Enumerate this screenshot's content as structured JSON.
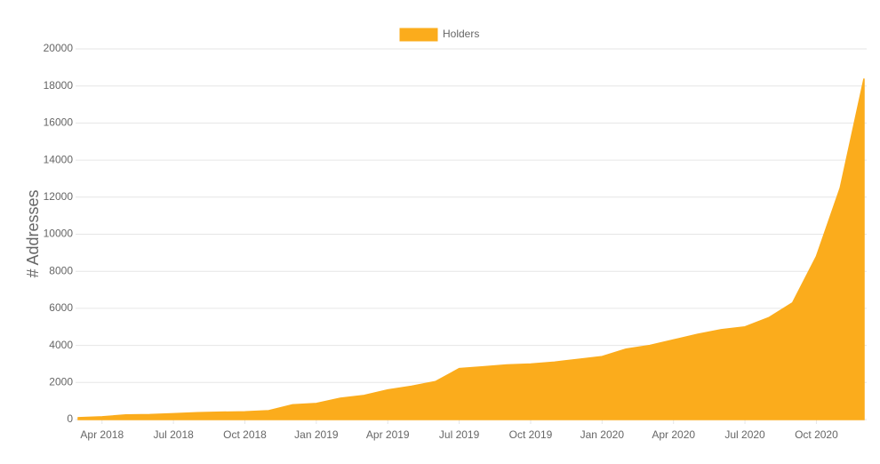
{
  "chart_data": {
    "type": "area",
    "y_label": "# Addresses",
    "x": [
      "2018-03",
      "2018-04",
      "2018-05",
      "2018-06",
      "2018-07",
      "2018-08",
      "2018-09",
      "2018-10",
      "2018-11",
      "2018-12",
      "2019-01",
      "2019-02",
      "2019-03",
      "2019-04",
      "2019-05",
      "2019-06",
      "2019-07",
      "2019-08",
      "2019-09",
      "2019-10",
      "2019-11",
      "2019-12",
      "2020-01",
      "2020-02",
      "2020-03",
      "2020-04",
      "2020-05",
      "2020-06",
      "2020-07",
      "2020-08",
      "2020-09",
      "2020-10",
      "2020-11",
      "2020-12"
    ],
    "series": [
      {
        "name": "Holders",
        "color": "#fbac1c",
        "values": [
          100,
          150,
          250,
          270,
          320,
          370,
          400,
          420,
          480,
          800,
          870,
          1150,
          1300,
          1600,
          1800,
          2050,
          2750,
          2850,
          2950,
          3000,
          3100,
          3250,
          3400,
          3800,
          4000,
          4300,
          4600,
          4850,
          5000,
          5500,
          6300,
          8800,
          12500,
          18400
        ]
      }
    ],
    "xlim": [
      "2018-03",
      "2020-12"
    ],
    "xticks": [
      {
        "value": "2018-04",
        "label": "Apr 2018"
      },
      {
        "value": "2018-07",
        "label": "Jul 2018"
      },
      {
        "value": "2018-10",
        "label": "Oct 2018"
      },
      {
        "value": "2019-01",
        "label": "Jan 2019"
      },
      {
        "value": "2019-04",
        "label": "Apr 2019"
      },
      {
        "value": "2019-07",
        "label": "Jul 2019"
      },
      {
        "value": "2019-10",
        "label": "Oct 2019"
      },
      {
        "value": "2020-01",
        "label": "Jan 2020"
      },
      {
        "value": "2020-04",
        "label": "Apr 2020"
      },
      {
        "value": "2020-07",
        "label": "Jul 2020"
      },
      {
        "value": "2020-10",
        "label": "Oct 2020"
      }
    ],
    "ylim": [
      0,
      20000
    ],
    "yticks": [
      0,
      2000,
      4000,
      6000,
      8000,
      10000,
      12000,
      14000,
      16000,
      18000,
      20000
    ],
    "grid": true,
    "legend": "top"
  }
}
